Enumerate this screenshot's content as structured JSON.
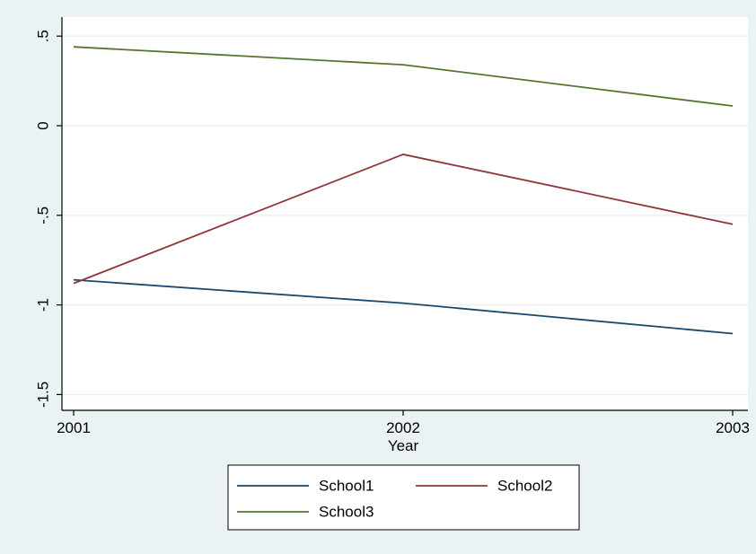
{
  "chart_data": {
    "type": "line",
    "title": "",
    "xlabel": "Year",
    "ylabel": "",
    "x": [
      2001,
      2002,
      2003
    ],
    "x_ticks": [
      "2001",
      "2002",
      "2003"
    ],
    "y_ticks": [
      {
        "value": 0.5,
        "label": ".5"
      },
      {
        "value": 0,
        "label": "0"
      },
      {
        "value": -0.5,
        "label": "-.5"
      },
      {
        "value": -1,
        "label": "-1"
      },
      {
        "value": -1.5,
        "label": "-1.5"
      }
    ],
    "xlim": [
      2001,
      2003
    ],
    "ylim": [
      -1.58,
      0.6
    ],
    "grid": true,
    "legend_position": "bottom",
    "series": [
      {
        "name": "School1",
        "color": "#1a476f",
        "values": [
          -0.86,
          -0.99,
          -1.16
        ]
      },
      {
        "name": "School2",
        "color": "#90353b",
        "values": [
          -0.88,
          -0.16,
          -0.55
        ]
      },
      {
        "name": "School3",
        "color": "#55752f",
        "values": [
          0.44,
          0.34,
          0.11
        ]
      }
    ],
    "colors": {
      "background": "#eaf2f3",
      "plot_background": "#ffffff",
      "grid": "#eaf2f3"
    }
  }
}
